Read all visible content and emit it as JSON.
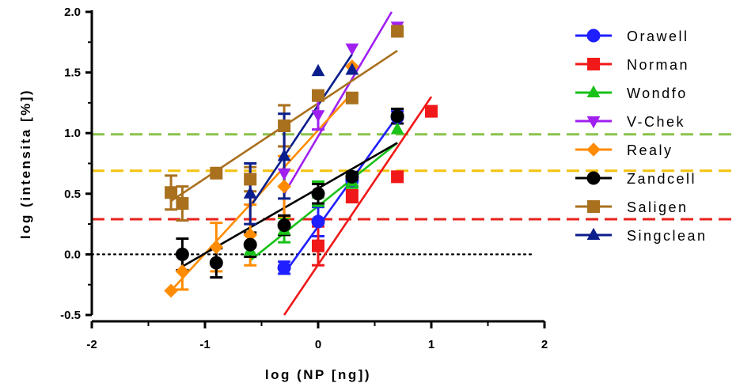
{
  "chart_data": {
    "type": "scatter",
    "xlabel": "log (NP [ng])",
    "ylabel": "log (intensita [%])",
    "xlim": [
      -2,
      2
    ],
    "ylim": [
      -0.5,
      2.0
    ],
    "xticks": [
      "-2",
      "-1",
      "0",
      "1",
      "2"
    ],
    "yticks": [
      "-0.5",
      "0.0",
      "0.5",
      "1.0",
      "1.5",
      "2.0"
    ],
    "legend_position": "right",
    "grid": false,
    "zero_reference_line": {
      "y": 0,
      "color": "#000000",
      "style": "dotted"
    },
    "threshold_lines": [
      {
        "y": 0.29,
        "color": "#e8221c",
        "style": "dashed"
      },
      {
        "y": 0.69,
        "color": "#f4c20d",
        "style": "dashed"
      },
      {
        "y": 0.99,
        "color": "#8bc34a",
        "style": "dashed"
      }
    ],
    "series": [
      {
        "name": "Orawell",
        "color": "#1f1fff",
        "marker": "circle",
        "points": [
          {
            "x": -0.3,
            "y": -0.11,
            "err": 0.05
          },
          {
            "x": 0.0,
            "y": 0.27,
            "err": 0.12
          },
          {
            "x": 0.3,
            "y": 0.61,
            "err": 0.05
          },
          {
            "x": 0.7,
            "y": 1.13,
            "err": 0.05
          }
        ],
        "fit": [
          [
            -0.3,
            -0.16
          ],
          [
            0.7,
            1.14
          ]
        ]
      },
      {
        "name": "Norman",
        "color": "#f01818",
        "marker": "square",
        "points": [
          {
            "x": 0.0,
            "y": 0.07,
            "err": 0.16
          },
          {
            "x": 0.3,
            "y": 0.48,
            "err": 0.05
          },
          {
            "x": 0.7,
            "y": 0.64,
            "err": 0
          },
          {
            "x": 1.0,
            "y": 1.18,
            "err": 0
          }
        ],
        "fit": [
          [
            -0.3,
            -0.5
          ],
          [
            1.0,
            1.3
          ]
        ]
      },
      {
        "name": "Wondfo",
        "color": "#19c219",
        "marker": "triangle-up",
        "points": [
          {
            "x": -0.6,
            "y": 0.03,
            "err": 0
          },
          {
            "x": -0.3,
            "y": 0.2,
            "err": 0.1
          },
          {
            "x": 0.0,
            "y": 0.5,
            "err": 0.1
          },
          {
            "x": 0.3,
            "y": 0.6,
            "err": 0.05
          },
          {
            "x": 0.7,
            "y": 1.03,
            "err": 0
          }
        ],
        "fit": [
          [
            -0.6,
            -0.05
          ],
          [
            0.7,
            0.92
          ]
        ]
      },
      {
        "name": "V-Chek",
        "color": "#a020f0",
        "marker": "triangle-down",
        "points": [
          {
            "x": -0.3,
            "y": 0.67,
            "err": 0.35
          },
          {
            "x": 0.0,
            "y": 1.15,
            "err": 0.12
          },
          {
            "x": 0.3,
            "y": 1.7,
            "err": 0
          },
          {
            "x": 0.7,
            "y": 1.88,
            "err": 0
          }
        ],
        "fit": [
          [
            -0.3,
            0.5
          ],
          [
            0.65,
            2.0
          ]
        ]
      },
      {
        "name": "Realy",
        "color": "#ff8c00",
        "marker": "diamond",
        "points": [
          {
            "x": -1.3,
            "y": -0.3,
            "err": 0
          },
          {
            "x": -1.2,
            "y": -0.14,
            "err": 0.15
          },
          {
            "x": -0.9,
            "y": 0.06,
            "err": 0.2
          },
          {
            "x": -0.6,
            "y": 0.16,
            "err": 0.25
          },
          {
            "x": -0.3,
            "y": 0.56,
            "err": 0.25
          },
          {
            "x": 0.3,
            "y": 1.55,
            "err": 0
          }
        ],
        "fit": [
          [
            -1.3,
            -0.3
          ],
          [
            0.3,
            1.33
          ]
        ]
      },
      {
        "name": "Zandcell",
        "color": "#000000",
        "marker": "circle",
        "points": [
          {
            "x": -1.2,
            "y": 0.0,
            "err": 0.13
          },
          {
            "x": -0.9,
            "y": -0.07,
            "err": 0.12
          },
          {
            "x": -0.6,
            "y": 0.08,
            "err": 0.1
          },
          {
            "x": -0.3,
            "y": 0.24,
            "err": 0.08
          },
          {
            "x": 0.0,
            "y": 0.5,
            "err": 0.08
          },
          {
            "x": 0.3,
            "y": 0.64,
            "err": 0.04
          },
          {
            "x": 0.7,
            "y": 1.14,
            "err": 0.06
          }
        ],
        "fit": [
          [
            -1.2,
            -0.1
          ],
          [
            0.7,
            0.92
          ]
        ]
      },
      {
        "name": "Saligen",
        "color": "#a9701e",
        "marker": "square",
        "points": [
          {
            "x": -1.3,
            "y": 0.51,
            "err": 0.14
          },
          {
            "x": -1.2,
            "y": 0.42,
            "err": 0.14
          },
          {
            "x": -0.9,
            "y": 0.67,
            "err": 0
          },
          {
            "x": -0.6,
            "y": 0.62,
            "err": 0.1
          },
          {
            "x": -0.3,
            "y": 1.06,
            "err": 0.17
          },
          {
            "x": 0.0,
            "y": 1.31,
            "err": 0
          },
          {
            "x": 0.3,
            "y": 1.29,
            "err": 0
          },
          {
            "x": 0.7,
            "y": 1.84,
            "err": 0
          }
        ],
        "fit": [
          [
            -1.3,
            0.44
          ],
          [
            0.7,
            1.68
          ]
        ]
      },
      {
        "name": "Singclean",
        "color": "#0b1e8c",
        "marker": "triangle-up",
        "points": [
          {
            "x": -0.6,
            "y": 0.5,
            "err": 0.25
          },
          {
            "x": -0.3,
            "y": 0.81,
            "err": 0.35
          },
          {
            "x": 0.0,
            "y": 1.51,
            "err": 0
          },
          {
            "x": 0.3,
            "y": 1.52,
            "err": 0
          }
        ],
        "fit": [
          [
            -0.6,
            0.39
          ],
          [
            0.3,
            1.65
          ]
        ]
      }
    ]
  }
}
